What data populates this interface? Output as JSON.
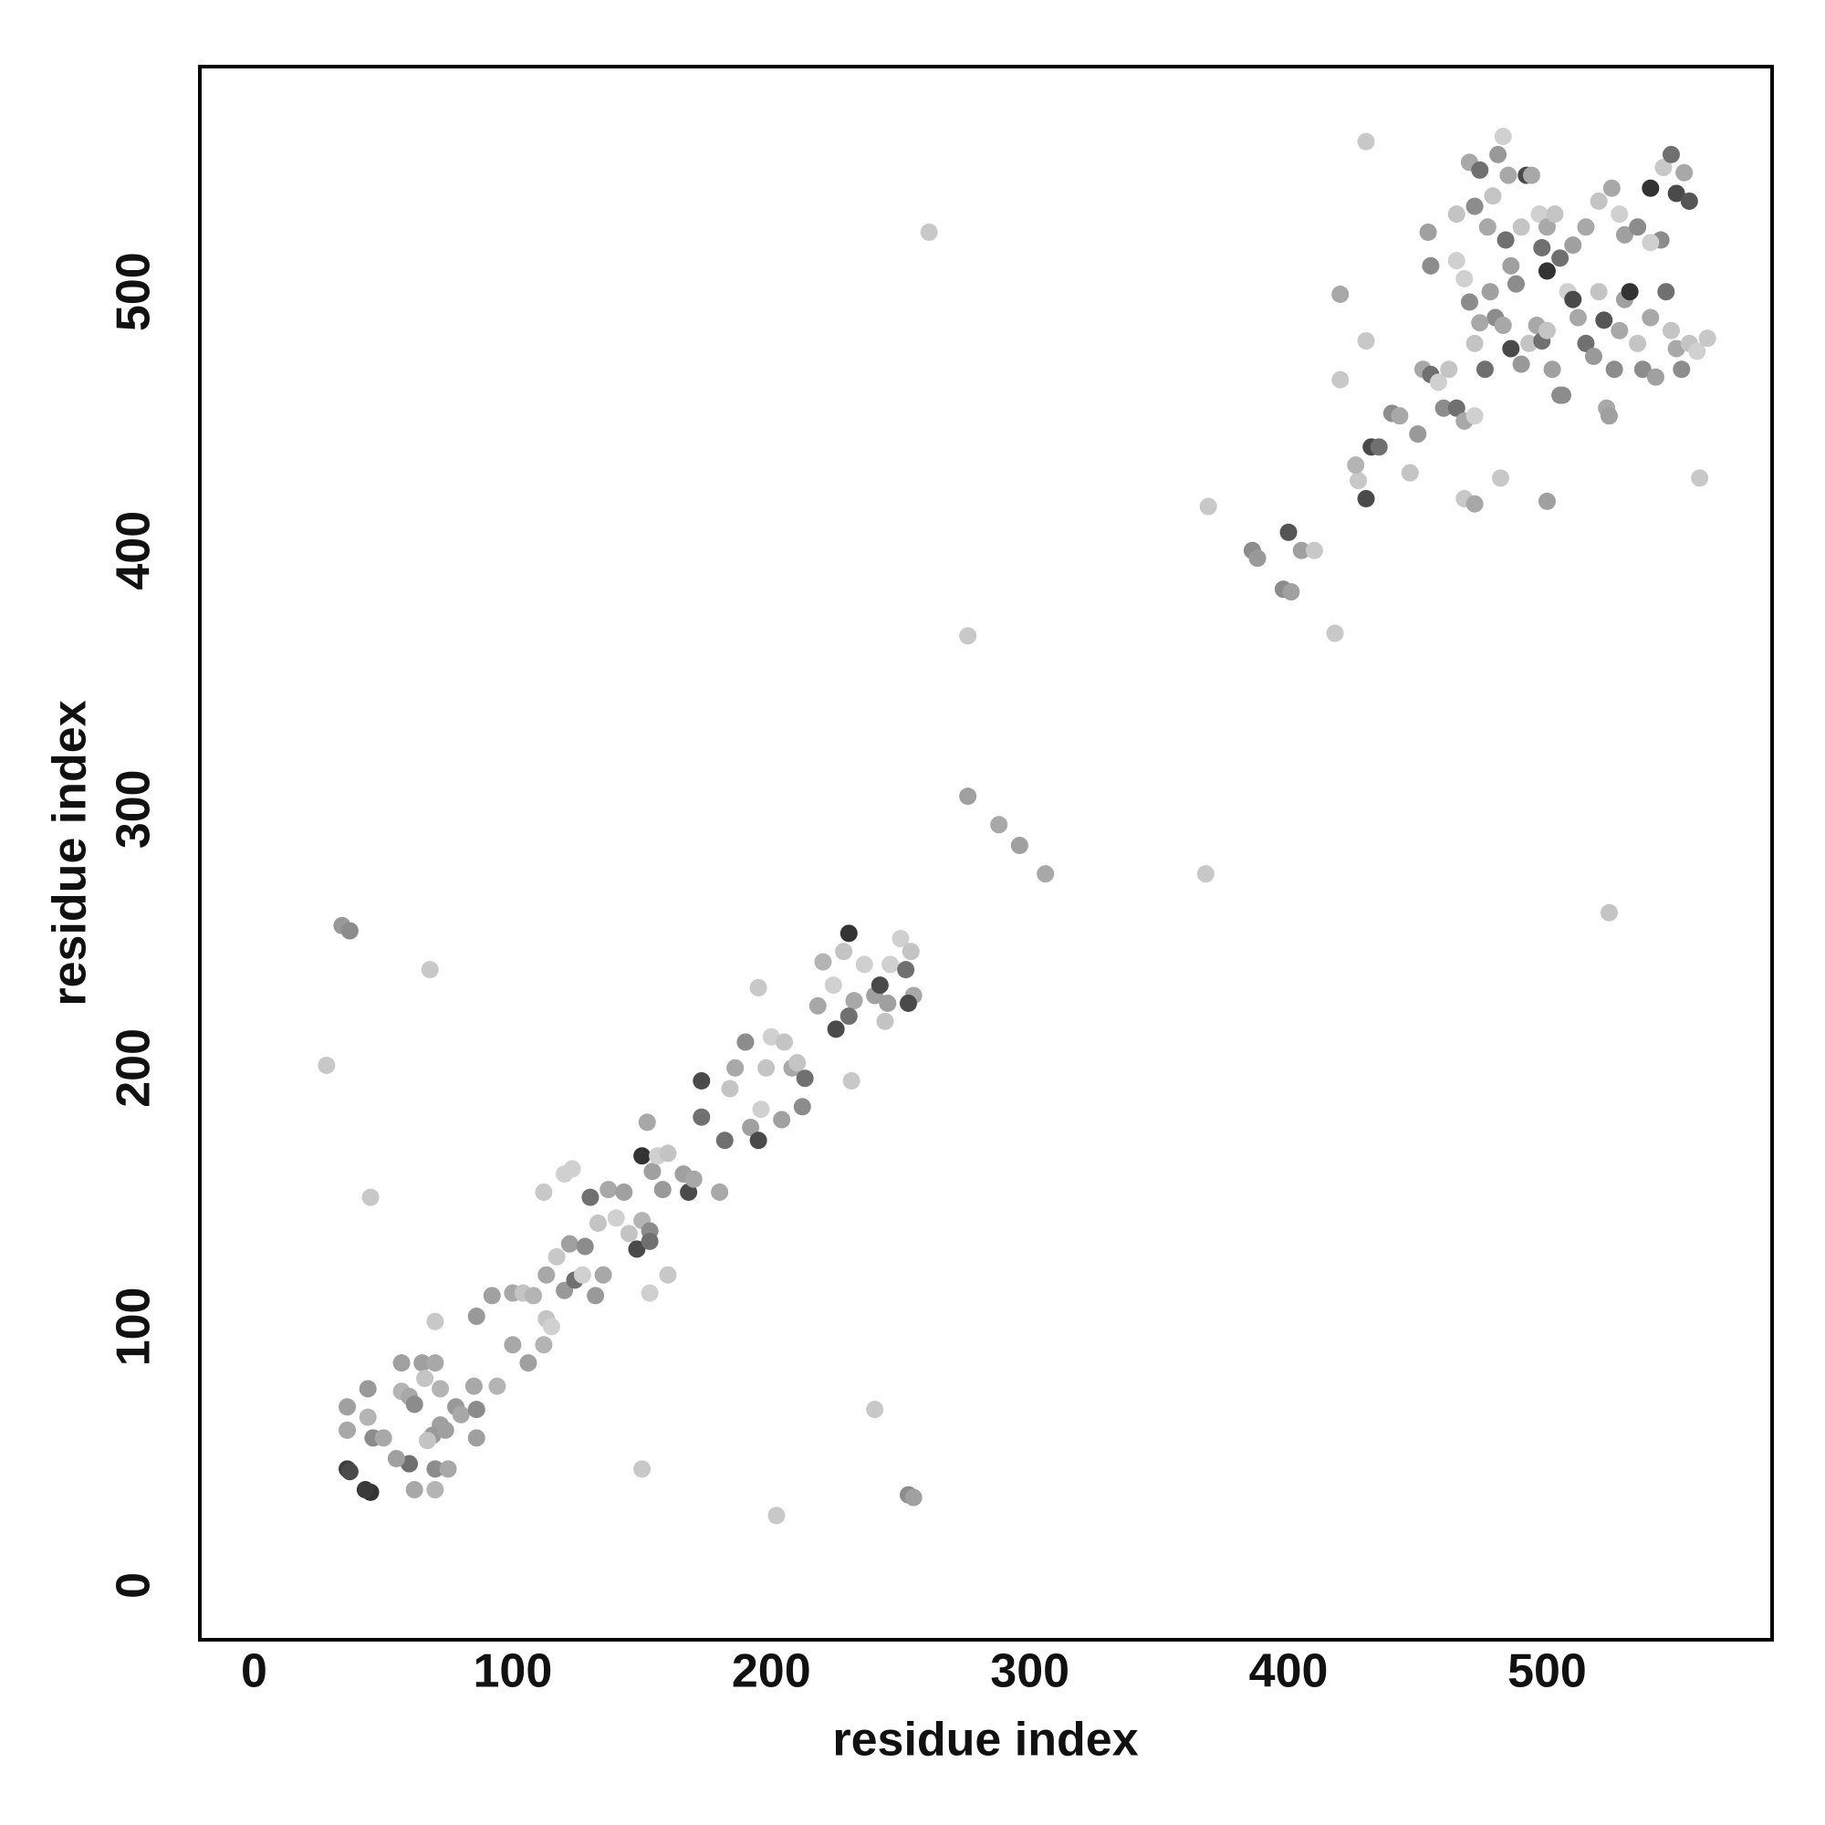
{
  "chart_data": {
    "type": "scatter",
    "x_label": "residue index",
    "y_label": "residue index",
    "xlim": [
      -21,
      587
    ],
    "ylim": [
      -21,
      587
    ],
    "xticks": [
      0,
      100,
      200,
      300,
      400,
      500
    ],
    "yticks": [
      0,
      100,
      200,
      300,
      400,
      500
    ],
    "grid": false,
    "x": [
      36,
      37,
      45,
      43,
      36,
      36,
      44,
      44,
      46,
      50,
      57,
      57,
      60,
      62,
      65,
      66,
      70,
      72,
      72,
      69,
      70,
      75,
      60,
      55,
      62,
      70,
      67,
      74,
      78,
      80,
      85,
      86,
      86,
      94,
      86,
      70,
      92,
      100,
      104,
      108,
      100,
      106,
      112,
      113,
      115,
      113,
      117,
      120,
      124,
      127,
      122,
      128,
      133,
      130,
      137,
      140,
      143,
      145,
      148,
      150,
      153,
      153,
      150,
      154,
      152,
      156,
      158,
      160,
      166,
      168,
      160,
      153,
      135,
      132,
      112,
      120,
      123,
      170,
      173,
      173,
      180,
      182,
      184,
      186,
      190,
      192,
      195,
      196,
      198,
      200,
      205,
      204,
      208,
      212,
      213,
      210,
      195,
      218,
      220,
      224,
      228,
      230,
      232,
      230,
      225,
      231,
      236,
      240,
      244,
      242,
      246,
      250,
      252,
      254,
      255,
      253,
      245,
      240,
      253,
      255,
      150,
      202,
      28,
      45,
      68,
      34,
      37,
      276,
      276,
      288,
      296,
      306,
      368,
      524,
      261,
      369,
      386,
      388,
      398,
      401,
      400,
      405,
      410,
      418,
      420,
      420,
      430,
      430,
      427,
      432,
      435,
      430,
      426,
      440,
      443,
      447,
      450,
      452,
      455,
      458,
      460,
      462,
      465,
      468,
      472,
      468,
      472,
      482,
      500,
      559,
      454,
      455,
      465,
      465,
      470,
      472,
      474,
      477,
      479,
      481,
      483,
      485,
      484,
      486,
      488,
      490,
      492,
      494,
      497,
      498,
      500,
      500,
      503,
      505,
      478,
      480,
      483,
      486,
      490,
      493,
      496,
      498,
      500,
      502,
      505,
      508,
      510,
      512,
      515,
      518,
      520,
      522,
      523,
      524,
      526,
      528,
      530,
      532,
      535,
      537,
      540,
      542,
      544,
      546,
      548,
      550,
      552,
      555,
      558,
      562,
      540,
      545,
      550,
      555,
      548,
      553,
      520,
      525,
      528,
      530,
      535,
      540,
      515,
      510,
      506,
      476,
      472,
      474,
      470,
      468
    ],
    "y": [
      45,
      44,
      36,
      37,
      60,
      69,
      76,
      65,
      57,
      57,
      86,
      75,
      73,
      70,
      86,
      80,
      86,
      76,
      62,
      58,
      45,
      45,
      47,
      49,
      37,
      37,
      56,
      60,
      69,
      66,
      77,
      68,
      57,
      77,
      104,
      102,
      112,
      113,
      113,
      112,
      93,
      86,
      93,
      103,
      100,
      120,
      127,
      114,
      118,
      120,
      132,
      131,
      140,
      150,
      153,
      142,
      152,
      136,
      130,
      141,
      137,
      133,
      166,
      160,
      179,
      166,
      153,
      167,
      159,
      152,
      120,
      113,
      120,
      112,
      152,
      159,
      161,
      157,
      181,
      195,
      152,
      172,
      192,
      200,
      210,
      177,
      172,
      184,
      200,
      212,
      210,
      180,
      200,
      185,
      196,
      202,
      231,
      224,
      241,
      232,
      245,
      252,
      226,
      220,
      215,
      195,
      240,
      228,
      218,
      232,
      240,
      250,
      238,
      245,
      228,
      225,
      225,
      68,
      35,
      34,
      45,
      27,
      201,
      150,
      238,
      255,
      253,
      367,
      305,
      294,
      286,
      275,
      275,
      260,
      523,
      417,
      400,
      397,
      385,
      384,
      407,
      400,
      400,
      368,
      466,
      499,
      481,
      558,
      427,
      440,
      440,
      420,
      433,
      453,
      452,
      430,
      445,
      470,
      468,
      465,
      455,
      470,
      455,
      450,
      452,
      420,
      418,
      428,
      419,
      428,
      523,
      510,
      530,
      512,
      550,
      533,
      547,
      525,
      537,
      553,
      560,
      545,
      520,
      510,
      503,
      525,
      545,
      545,
      530,
      517,
      525,
      508,
      530,
      513,
      500,
      490,
      487,
      478,
      472,
      480,
      487,
      481,
      485,
      470,
      460,
      500,
      497,
      490,
      480,
      475,
      500,
      489,
      455,
      452,
      470,
      485,
      497,
      500,
      480,
      470,
      490,
      467,
      520,
      500,
      485,
      478,
      470,
      480,
      477,
      482,
      540,
      548,
      538,
      535,
      553,
      546,
      535,
      540,
      530,
      522,
      525,
      519,
      525,
      518,
      460,
      470,
      480,
      488,
      496,
      505
    ],
    "colors": [
      "#3c3c3c",
      "#4a4a4a",
      "#333333",
      "#3a3a3a",
      "#a8a8a8",
      "#a0a0a0",
      "#999999",
      "#b4b4b4",
      "#8c8c8c",
      "#a8a8a8",
      "#a0a0a0",
      "#b4b4b4",
      "#a8a8a8",
      "#8c8c8c",
      "#a0a0a0",
      "#c4c4c4",
      "#a8a8a8",
      "#b4b4b4",
      "#a0a0a0",
      "#999999",
      "#8c8c8c",
      "#a8a8a8",
      "#707070",
      "#a0a0a0",
      "#a8a8a8",
      "#b4b4b4",
      "#c4c4c4",
      "#a0a0a0",
      "#999999",
      "#a8a8a8",
      "#a8a8a8",
      "#8c8c8c",
      "#a0a0a0",
      "#b4b4b4",
      "#999999",
      "#c8c8c8",
      "#a0a0a0",
      "#a8a8a8",
      "#c4c4c4",
      "#b4b4b4",
      "#a8a8a8",
      "#a0a0a0",
      "#b4b4b4",
      "#c4c4c4",
      "#d0d0d0",
      "#a8a8a8",
      "#c8c8c8",
      "#999999",
      "#707070",
      "#d0d0d0",
      "#a0a0a0",
      "#8c8c8c",
      "#c4c4c4",
      "#707070",
      "#a8a8a8",
      "#d0d0d0",
      "#a0a0a0",
      "#c4c4c4",
      "#4a4a4a",
      "#b4b4b4",
      "#8c8c8c",
      "#707070",
      "#333333",
      "#a0a0a0",
      "#a8a8a8",
      "#d0d0d0",
      "#999999",
      "#c4c4c4",
      "#a0a0a0",
      "#4a4a4a",
      "#c8c8c8",
      "#d0d0d0",
      "#a8a8a8",
      "#999999",
      "#c8c8c8",
      "#d0d0d0",
      "#d0d0d0",
      "#a8a8a8",
      "#707070",
      "#4a4a4a",
      "#a8a8a8",
      "#707070",
      "#c4c4c4",
      "#a8a8a8",
      "#8c8c8c",
      "#a0a0a0",
      "#4a4a4a",
      "#d0d0d0",
      "#c4c4c4",
      "#d0d0d0",
      "#c4c4c4",
      "#a0a0a0",
      "#a8a8a8",
      "#8c8c8c",
      "#707070",
      "#c4c4c4",
      "#c8c8c8",
      "#a8a8a8",
      "#b4b4b4",
      "#d0d0d0",
      "#c4c4c4",
      "#333333",
      "#a8a8a8",
      "#707070",
      "#4a4a4a",
      "#c8c8c8",
      "#d0d0d0",
      "#a0a0a0",
      "#c4c4c4",
      "#4a4a4a",
      "#d0d0d0",
      "#d0d0d0",
      "#707070",
      "#c4c4c4",
      "#a8a8a8",
      "#4a4a4a",
      "#a0a0a0",
      "#c8c8c8",
      "#8c8c8c",
      "#a0a0a0",
      "#c8c8c8",
      "#c8c8c8",
      "#c8c8c8",
      "#c8c8c8",
      "#c8c8c8",
      "#999999",
      "#8c8c8c",
      "#c8c8c8",
      "#a0a0a0",
      "#a8a8a8",
      "#a0a0a0",
      "#a8a8a8",
      "#c8c8c8",
      "#c4c4c4",
      "#c8c8c8",
      "#c8c8c8",
      "#8c8c8c",
      "#999999",
      "#8c8c8c",
      "#a0a0a0",
      "#555555",
      "#a0a0a0",
      "#c8c8c8",
      "#c8c8c8",
      "#c8c8c8",
      "#a8a8a8",
      "#c8c8c8",
      "#c8c8c8",
      "#c8c8c8",
      "#4a4a4a",
      "#707070",
      "#4a4a4a",
      "#b4b4b4",
      "#8c8c8c",
      "#a8a8a8",
      "#c4c4c4",
      "#999999",
      "#a8a8a8",
      "#707070",
      "#d0d0d0",
      "#8c8c8c",
      "#c4c4c4",
      "#707070",
      "#a8a8a8",
      "#d0d0d0",
      "#c8c8c8",
      "#a8a8a8",
      "#c8c8c8",
      "#a0a0a0",
      "#c8c8c8",
      "#a0a0a0",
      "#8c8c8c",
      "#c4c4c4",
      "#d0d0d0",
      "#a8a8a8",
      "#8c8c8c",
      "#707070",
      "#a8a8a8",
      "#c4c4c4",
      "#999999",
      "#d0d0d0",
      "#a8a8a8",
      "#707070",
      "#a0a0a0",
      "#8c8c8c",
      "#c4c4c4",
      "#4a4a4a",
      "#a8a8a8",
      "#d0d0d0",
      "#707070",
      "#a8a8a8",
      "#333333",
      "#c4c4c4",
      "#707070",
      "#a0a0a0",
      "#8c8c8c",
      "#a8a8a8",
      "#4a4a4a",
      "#999999",
      "#c4c4c4",
      "#a8a8a8",
      "#707070",
      "#c4c4c4",
      "#a0a0a0",
      "#8c8c8c",
      "#d0d0d0",
      "#4a4a4a",
      "#a8a8a8",
      "#707070",
      "#999999",
      "#c4c4c4",
      "#555555",
      "#a8a8a8",
      "#a0a0a0",
      "#8c8c8c",
      "#a8a8a8",
      "#a0a0a0",
      "#333333",
      "#c4c4c4",
      "#8c8c8c",
      "#a8a8a8",
      "#a0a0a0",
      "#8c8c8c",
      "#707070",
      "#c4c4c4",
      "#a8a8a8",
      "#8c8c8c",
      "#c4c4c4",
      "#d0d0d0",
      "#c8c8c8",
      "#333333",
      "#c8c8c8",
      "#4a4a4a",
      "#555555",
      "#707070",
      "#a8a8a8",
      "#c4c4c4",
      "#a8a8a8",
      "#d0d0d0",
      "#a0a0a0",
      "#8c8c8c",
      "#d0d0d0",
      "#a8a8a8",
      "#a0a0a0",
      "#8c8c8c",
      "#707070",
      "#c4c4c4",
      "#a8a8a8",
      "#8c8c8c",
      "#d0d0d0"
    ]
  }
}
